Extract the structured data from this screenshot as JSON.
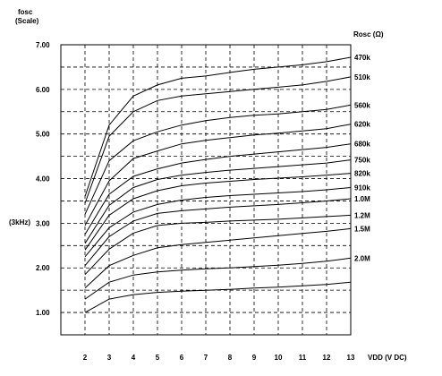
{
  "chart_data": {
    "type": "line",
    "y_title_line1": "fosc",
    "y_title_line2": "(Scale)",
    "legend_title": "Rosc (Ω)",
    "xlabel": "VDD (V DC)",
    "y_annotation": "(3kHz)",
    "xlim": [
      1,
      13
    ],
    "ylim": [
      0.5,
      7.0
    ],
    "grid": true,
    "x_ticks": [
      2,
      3,
      4,
      5,
      6,
      7,
      8,
      9,
      10,
      11,
      12,
      13
    ],
    "y_ticks": [
      {
        "value": 1.0,
        "label": "1.00"
      },
      {
        "value": 2.0,
        "label": "2.00"
      },
      {
        "value": 3.0,
        "label": "3.00"
      },
      {
        "value": 4.0,
        "label": "4.00"
      },
      {
        "value": 5.0,
        "label": "5.00"
      },
      {
        "value": 6.0,
        "label": "6.00"
      },
      {
        "value": 7.0,
        "label": "7.00"
      }
    ],
    "x": [
      2,
      3,
      4,
      5,
      6,
      7,
      8,
      9,
      10,
      11,
      12,
      13
    ],
    "series": [
      {
        "name": "470k",
        "values": [
          3.6,
          5.2,
          5.85,
          6.1,
          6.25,
          6.3,
          6.38,
          6.45,
          6.5,
          6.55,
          6.62,
          6.72
        ]
      },
      {
        "name": "510k",
        "values": [
          3.45,
          4.95,
          5.5,
          5.75,
          5.85,
          5.9,
          5.95,
          6.0,
          6.05,
          6.1,
          6.18,
          6.28
        ]
      },
      {
        "name": "560k",
        "values": [
          3.2,
          4.4,
          4.85,
          5.05,
          5.2,
          5.3,
          5.37,
          5.42,
          5.45,
          5.5,
          5.55,
          5.65
        ]
      },
      {
        "name": "620k",
        "values": [
          2.95,
          3.95,
          4.45,
          4.62,
          4.78,
          4.86,
          4.92,
          4.98,
          5.02,
          5.07,
          5.12,
          5.22
        ]
      },
      {
        "name": "680k",
        "values": [
          2.75,
          3.65,
          4.05,
          4.22,
          4.35,
          4.43,
          4.5,
          4.55,
          4.6,
          4.65,
          4.7,
          4.78
        ]
      },
      {
        "name": "750k",
        "values": [
          2.55,
          3.4,
          3.8,
          3.98,
          4.08,
          4.14,
          4.19,
          4.23,
          4.27,
          4.31,
          4.35,
          4.42
        ]
      },
      {
        "name": "820k",
        "values": [
          2.4,
          3.18,
          3.55,
          3.73,
          3.84,
          3.9,
          3.94,
          3.98,
          4.01,
          4.04,
          4.08,
          4.12
        ]
      },
      {
        "name": "910k",
        "values": [
          2.25,
          2.9,
          3.25,
          3.42,
          3.52,
          3.58,
          3.62,
          3.65,
          3.68,
          3.71,
          3.75,
          3.8
        ]
      },
      {
        "name": "1.0M",
        "values": [
          2.05,
          2.7,
          3.05,
          3.22,
          3.28,
          3.32,
          3.36,
          3.39,
          3.42,
          3.46,
          3.5,
          3.55
        ]
      },
      {
        "name": "1.2M",
        "values": [
          1.85,
          2.42,
          2.78,
          2.95,
          3.0,
          3.02,
          3.05,
          3.07,
          3.09,
          3.12,
          3.15,
          3.18
        ]
      },
      {
        "name": "1.5M",
        "values": [
          1.55,
          2.05,
          2.28,
          2.45,
          2.52,
          2.57,
          2.62,
          2.67,
          2.72,
          2.77,
          2.82,
          2.88
        ]
      },
      {
        "name": "2.0M",
        "values": [
          1.3,
          1.68,
          1.84,
          1.91,
          1.95,
          1.98,
          2.0,
          2.03,
          2.06,
          2.1,
          2.15,
          2.22
        ]
      },
      {
        "name": "",
        "values": [
          1.0,
          1.3,
          1.4,
          1.45,
          1.48,
          1.5,
          1.52,
          1.55,
          1.57,
          1.6,
          1.63,
          1.68
        ]
      }
    ]
  }
}
